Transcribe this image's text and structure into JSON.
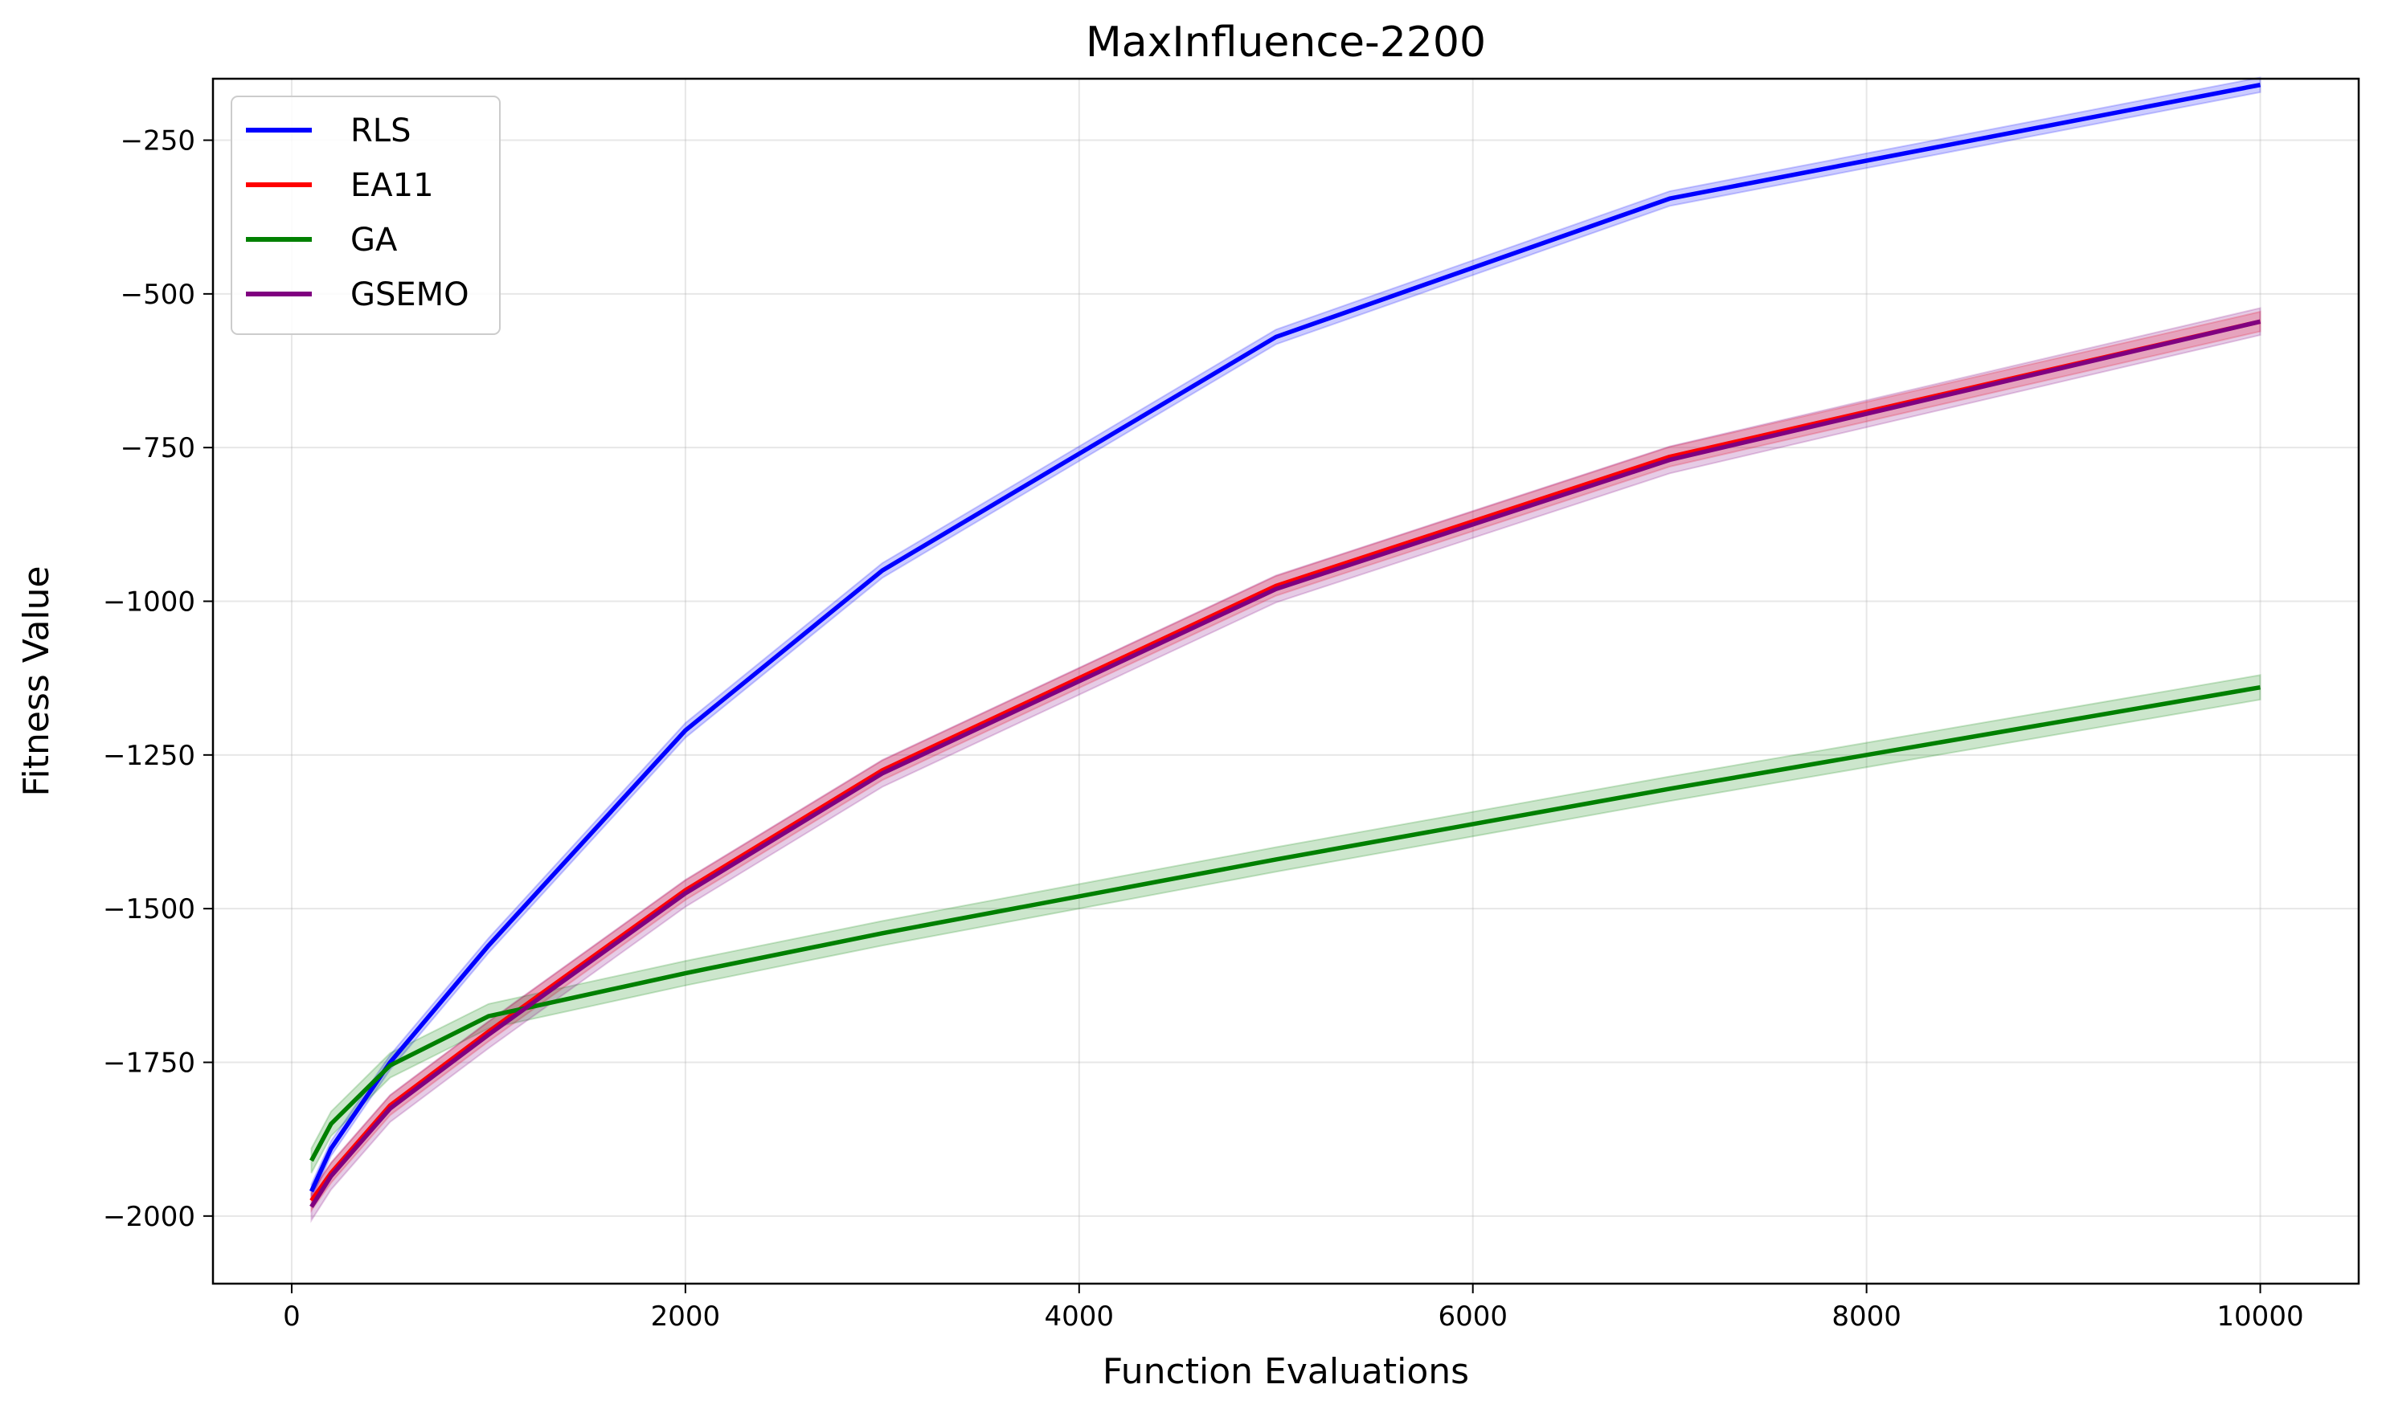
{
  "chart_data": {
    "type": "line",
    "title": "MaxInfluence-2200",
    "xlabel": "Function Evaluations",
    "ylabel": "Fitness Value",
    "xlim": [
      -400,
      10500
    ],
    "ylim": [
      -2110,
      -150
    ],
    "xticks": [
      0,
      2000,
      4000,
      6000,
      8000,
      10000
    ],
    "xtick_labels": [
      "0",
      "2000",
      "4000",
      "6000",
      "8000",
      "10000"
    ],
    "yticks": [
      -2000,
      -1750,
      -1500,
      -1250,
      -1000,
      -750,
      -500,
      -250
    ],
    "ytick_labels": [
      "−2000",
      "−1750",
      "−1500",
      "−1250",
      "−1000",
      "−750",
      "−500",
      "−250"
    ],
    "grid": true,
    "legend_position": "top-left",
    "x": [
      100,
      200,
      500,
      1000,
      2000,
      3000,
      5000,
      7000,
      10000
    ],
    "series": [
      {
        "name": "RLS",
        "color": "#0000ff",
        "values": [
          -1960,
          -1890,
          -1750,
          -1560,
          -1210,
          -950,
          -570,
          -345,
          -160
        ],
        "band": 12
      },
      {
        "name": "EA11",
        "color": "#ff0000",
        "values": [
          -1975,
          -1930,
          -1820,
          -1700,
          -1470,
          -1275,
          -975,
          -765,
          -545
        ],
        "band": 16
      },
      {
        "name": "GA",
        "color": "#008000",
        "values": [
          -1910,
          -1850,
          -1755,
          -1675,
          -1605,
          -1540,
          -1420,
          -1305,
          -1140
        ],
        "band": 20
      },
      {
        "name": "GSEMO",
        "color": "#800080",
        "values": [
          -1985,
          -1935,
          -1825,
          -1705,
          -1475,
          -1280,
          -980,
          -770,
          -545
        ],
        "band": 22
      }
    ]
  }
}
